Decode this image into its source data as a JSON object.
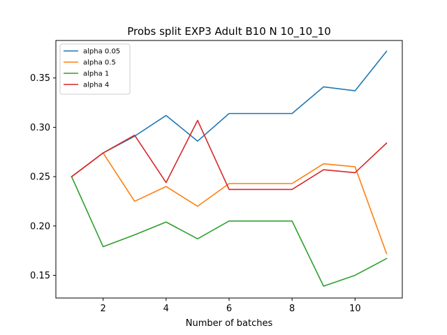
{
  "chart_data": {
    "type": "line",
    "title": "Probs split EXP3 Adult B10 N 10_10_10",
    "xlabel": "Number of batches",
    "ylabel": "",
    "x": [
      1,
      2,
      3,
      4,
      5,
      6,
      7,
      8,
      9,
      10,
      11
    ],
    "xlim": [
      0.5,
      11.5
    ],
    "ylim": [
      0.127,
      0.388
    ],
    "xticks": [
      2,
      4,
      6,
      8,
      10
    ],
    "xtick_labels": [
      "2",
      "4",
      "6",
      "8",
      "10"
    ],
    "yticks": [
      0.15,
      0.2,
      0.25,
      0.3,
      0.35
    ],
    "ytick_labels": [
      "0.15",
      "0.20",
      "0.25",
      "0.30",
      "0.35"
    ],
    "grid": false,
    "legend_position": "top-left",
    "series": [
      {
        "name": "alpha 0.05",
        "color": "#1f77b4",
        "values": [
          0.25,
          0.274,
          0.291,
          0.312,
          0.286,
          0.314,
          0.314,
          0.314,
          0.341,
          0.337,
          0.377
        ]
      },
      {
        "name": "alpha 0.5",
        "color": "#ff7f0e",
        "values": [
          0.25,
          0.274,
          0.225,
          0.24,
          0.22,
          0.243,
          0.243,
          0.243,
          0.263,
          0.26,
          0.172
        ]
      },
      {
        "name": "alpha 1",
        "color": "#2ca02c",
        "values": [
          0.25,
          0.179,
          0.191,
          0.204,
          0.187,
          0.205,
          0.205,
          0.205,
          0.139,
          0.15,
          0.167
        ]
      },
      {
        "name": "alpha 4",
        "color": "#d62728",
        "values": [
          0.25,
          0.274,
          0.292,
          0.244,
          0.307,
          0.237,
          0.237,
          0.237,
          0.257,
          0.254,
          0.284
        ]
      }
    ]
  }
}
